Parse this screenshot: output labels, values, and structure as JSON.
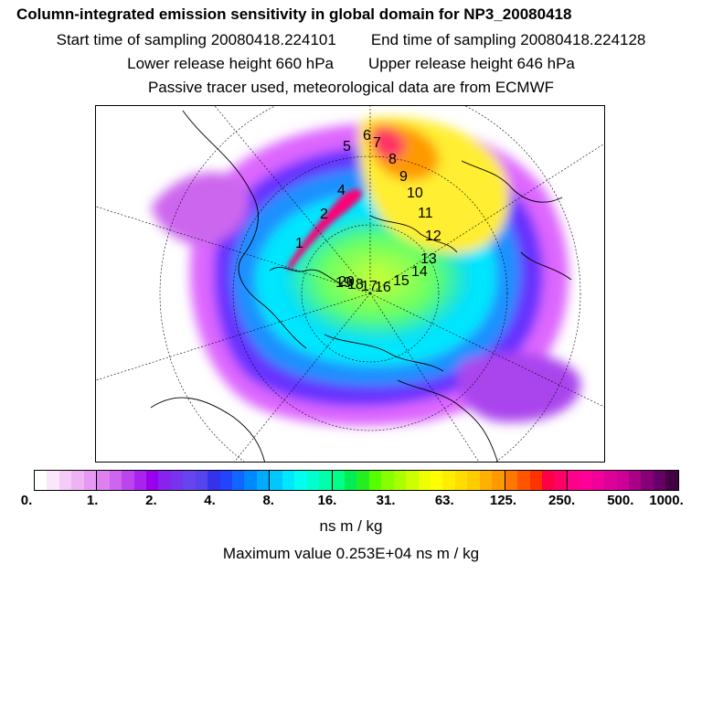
{
  "header": {
    "title": "Column-integrated emission sensitivity in global domain for NP3_20080418",
    "start_time": "Start time of sampling 20080418.224101",
    "end_time": "End time of sampling 20080418.224128",
    "lower_release": "Lower release height  660 hPa",
    "upper_release": "Upper release height  646 hPa",
    "note": "Passive tracer used, meteorological data are from ECMWF"
  },
  "map": {
    "projection": "polar stereographic (north pole)",
    "track_labels": [
      "1",
      "2",
      "4",
      "5",
      "6",
      "7",
      "8",
      "9",
      "10",
      "11",
      "12",
      "13",
      "14",
      "15",
      "16",
      "17",
      "18",
      "19",
      "20"
    ]
  },
  "colorbar": {
    "tick_labels": [
      "0.",
      "1.",
      "2.",
      "4.",
      "8.",
      "16.",
      "31.",
      "63.",
      "125.",
      "250.",
      "500.",
      "1000."
    ],
    "units": "ns m / kg",
    "colors": [
      "#ffffff",
      "#fbe6fb",
      "#f5ccf7",
      "#efb3f5",
      "#e699f2",
      "#dd80f0",
      "#cc66ee",
      "#bb44ee",
      "#aa22ee",
      "#9900ee",
      "#8822ee",
      "#7733ee",
      "#6644ee",
      "#5544ee",
      "#3333ee",
      "#2244ff",
      "#1166ff",
      "#0088ff",
      "#00aaff",
      "#00c8ff",
      "#00e6ff",
      "#00ffee",
      "#00ffcc",
      "#00ffaa",
      "#00ff88",
      "#00ee55",
      "#22ee22",
      "#55ff00",
      "#88ff00",
      "#aaff00",
      "#ccff00",
      "#eeff00",
      "#ffff00",
      "#ffee00",
      "#ffdd00",
      "#ffcc00",
      "#ffb000",
      "#ff9900",
      "#ff7700",
      "#ff5500",
      "#ff3300",
      "#ff0044",
      "#ff0066",
      "#ff0088",
      "#ff0099",
      "#ee0099",
      "#dd0099",
      "#cc0099",
      "#aa0088",
      "#880077",
      "#660066",
      "#440044"
    ]
  },
  "max_value": "Maximum value  0.253E+04 ns m / kg"
}
